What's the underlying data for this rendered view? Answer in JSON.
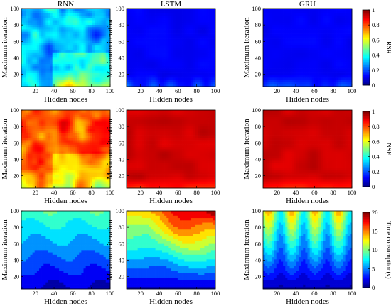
{
  "chart_data": [
    {
      "type": "heatmap",
      "title": "RNN",
      "xlabel": "Hidden nodes",
      "ylabel": "Maximum iteration",
      "x_ticks": [
        20,
        40,
        60,
        80,
        100
      ],
      "y_ticks": [
        20,
        40,
        60,
        80,
        100
      ],
      "xlim": [
        5,
        100
      ],
      "ylim": [
        5,
        100
      ],
      "metric": "RSR",
      "pattern": "noisy mid-range values; larger near low iterations and low/mid hidden nodes",
      "colorbar": {
        "label": "RSR",
        "range": [
          0,
          1
        ],
        "ticks": [
          0,
          0.2,
          0.4,
          0.6,
          0.8,
          1
        ]
      }
    },
    {
      "type": "heatmap",
      "title": "LSTM",
      "xlabel": "Hidden nodes",
      "ylabel": "Maximum iteration",
      "x_ticks": [
        20,
        40,
        60,
        80,
        100
      ],
      "y_ticks": [
        20,
        40,
        60,
        80,
        100
      ],
      "xlim": [
        5,
        100
      ],
      "ylim": [
        5,
        100
      ],
      "metric": "RSR",
      "pattern": "low values (~0.1) almost everywhere, slightly higher below 20 iterations",
      "colorbar": {
        "label": "RSR",
        "range": [
          0,
          1
        ],
        "ticks": [
          0,
          0.2,
          0.4,
          0.6,
          0.8,
          1
        ]
      }
    },
    {
      "type": "heatmap",
      "title": "GRU",
      "xlabel": "Hidden nodes",
      "ylabel": "Maximum iteration",
      "x_ticks": [
        20,
        40,
        60,
        80,
        100
      ],
      "y_ticks": [
        20,
        40,
        60,
        80,
        100
      ],
      "xlim": [
        5,
        100
      ],
      "ylim": [
        5,
        100
      ],
      "metric": "RSR",
      "pattern": "low values (~0.1) almost everywhere, slightly higher below 20 iterations",
      "colorbar": {
        "label": "RSR",
        "range": [
          0,
          1
        ],
        "ticks": [
          0,
          0.2,
          0.4,
          0.6,
          0.8,
          1
        ]
      }
    },
    {
      "type": "heatmap",
      "title": "",
      "xlabel": "Hidden nodes",
      "ylabel": "Maximum iteration",
      "x_ticks": [
        20,
        40,
        60,
        80,
        100
      ],
      "y_ticks": [
        20,
        40,
        60,
        80,
        100
      ],
      "xlim": [
        5,
        100
      ],
      "ylim": [
        5,
        100
      ],
      "metric": "NSE",
      "pattern": "high values (~0.9) with lower patches at low iterations and mid hidden nodes",
      "colorbar": {
        "label": "NSE",
        "range": [
          0,
          1
        ],
        "ticks": [
          0,
          0.2,
          0.4,
          0.6,
          0.8,
          1
        ]
      }
    },
    {
      "type": "heatmap",
      "title": "",
      "xlabel": "Hidden nodes",
      "ylabel": "Maximum iteration",
      "x_ticks": [
        20,
        40,
        60,
        80,
        100
      ],
      "y_ticks": [
        20,
        40,
        60,
        80,
        100
      ],
      "xlim": [
        5,
        100
      ],
      "ylim": [
        5,
        100
      ],
      "metric": "NSE",
      "pattern": "high values (~0.95) everywhere, slightly lower below 20 iterations",
      "colorbar": {
        "label": "NSE",
        "range": [
          0,
          1
        ],
        "ticks": [
          0,
          0.2,
          0.4,
          0.6,
          0.8,
          1
        ]
      }
    },
    {
      "type": "heatmap",
      "title": "",
      "xlabel": "Hidden nodes",
      "ylabel": "Maximum iteration",
      "x_ticks": [
        20,
        40,
        60,
        80,
        100
      ],
      "y_ticks": [
        20,
        40,
        60,
        80,
        100
      ],
      "xlim": [
        5,
        100
      ],
      "ylim": [
        5,
        100
      ],
      "metric": "NSE",
      "pattern": "high values (~0.95) everywhere, slightly lower below 20 iterations",
      "colorbar": {
        "label": "NSE",
        "range": [
          0,
          1
        ],
        "ticks": [
          0,
          0.2,
          0.4,
          0.6,
          0.8,
          1
        ]
      }
    },
    {
      "type": "heatmap",
      "title": "",
      "xlabel": "Hidden nodes",
      "ylabel": "Maximum iteration",
      "x_ticks": [
        20,
        40,
        60,
        80,
        100
      ],
      "y_ticks": [
        20,
        40,
        60,
        80,
        100
      ],
      "xlim": [
        5,
        100
      ],
      "ylim": [
        5,
        100
      ],
      "metric": "Time consumption(s)",
      "pattern": "time grows with iterations, from ~1 s to ~9 s",
      "colorbar": {
        "label": "Time consumption(s)",
        "range": [
          0,
          20
        ],
        "ticks": [
          0,
          5,
          10,
          15,
          20
        ]
      }
    },
    {
      "type": "heatmap",
      "title": "",
      "xlabel": "Hidden nodes",
      "ylabel": "Maximum iteration",
      "x_ticks": [
        20,
        40,
        60,
        80,
        100
      ],
      "y_ticks": [
        20,
        40,
        60,
        80,
        100
      ],
      "xlim": [
        5,
        100
      ],
      "ylim": [
        5,
        100
      ],
      "metric": "Time consumption(s)",
      "pattern": "time grows with iterations and hidden nodes, up to ~20 s near 100 iterations / 80 nodes",
      "colorbar": {
        "label": "Time consumption(s)",
        "range": [
          0,
          20
        ],
        "ticks": [
          0,
          5,
          10,
          15,
          20
        ]
      }
    },
    {
      "type": "heatmap",
      "title": "",
      "xlabel": "Hidden nodes",
      "ylabel": "Maximum iteration",
      "x_ticks": [
        20,
        40,
        60,
        80,
        100
      ],
      "y_ticks": [
        20,
        40,
        60,
        80,
        100
      ],
      "xlim": [
        5,
        100
      ],
      "ylim": [
        5,
        100
      ],
      "metric": "Time consumption(s)",
      "pattern": "time grows with iterations with oscillating bands across hidden nodes, up to ~16 s",
      "colorbar": {
        "label": "Time consumption(s)",
        "range": [
          0,
          20
        ],
        "ticks": [
          0,
          5,
          10,
          15,
          20
        ]
      }
    }
  ],
  "colorbars": [
    {
      "label": "RSR",
      "ticks": [
        "0",
        "0.2",
        "0.4",
        "0.6",
        "0.8",
        "1"
      ]
    },
    {
      "label": "NSE",
      "ticks": [
        "0",
        "0.2",
        "0.4",
        "0.6",
        "0.8",
        "1"
      ]
    },
    {
      "label": "Time consumption(s)",
      "ticks": [
        "0",
        "5",
        "10",
        "15",
        "20"
      ]
    }
  ]
}
